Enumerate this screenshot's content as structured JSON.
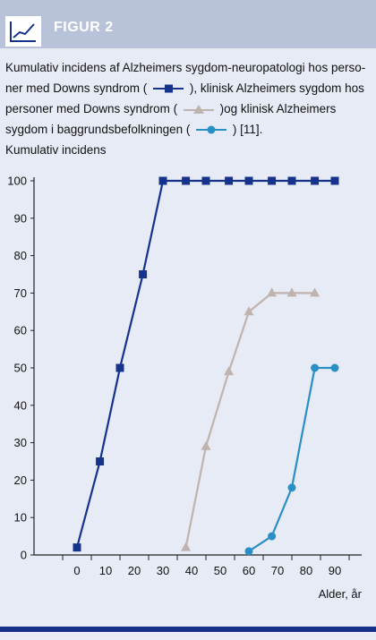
{
  "figure_label": "FIGUR 2",
  "caption": {
    "part1": "Kumulativ incidens af Alzheimers sygdom-neuropatologi hos perso-ner med Downs syndrom (",
    "part2": "), klinisk Alzheimers sygdom hos personer med Downs syndrom (",
    "part3": ")og klinisk Alzheimers sygdom i baggrundsbefolkningen (",
    "part4": ") [11]."
  },
  "colors": {
    "series1": "#16338c",
    "series2": "#bfb3ad",
    "series3": "#2a8fc4",
    "axis": "#222222",
    "grid": "#9aa4b8",
    "header_band": "#b8c2d8",
    "footer_line": "#14308a"
  },
  "chart_data": {
    "type": "line",
    "title": "",
    "xlabel": "Alder, år",
    "ylabel": "Kumulativ incidens",
    "xlim": [
      -15,
      95
    ],
    "ylim": [
      0,
      100
    ],
    "x_ticks": [
      0,
      10,
      20,
      30,
      40,
      50,
      60,
      70,
      80,
      90
    ],
    "y_ticks": [
      0,
      10,
      20,
      30,
      40,
      50,
      60,
      70,
      80,
      90,
      100
    ],
    "grid": false,
    "series": [
      {
        "marker": "square",
        "x": [
          0,
          8,
          15,
          23,
          30,
          38,
          45,
          53,
          60,
          68,
          75,
          83,
          90
        ],
        "y": [
          2,
          25,
          50,
          75,
          100,
          100,
          100,
          100,
          100,
          100,
          100,
          100,
          100
        ]
      },
      {
        "marker": "triangle",
        "x": [
          38,
          45,
          53,
          60,
          68,
          75,
          83
        ],
        "y": [
          2,
          29,
          49,
          65,
          70,
          70,
          70
        ]
      },
      {
        "marker": "circle",
        "x": [
          60,
          68,
          75,
          83,
          90
        ],
        "y": [
          1,
          5,
          18,
          50,
          50
        ]
      }
    ]
  }
}
